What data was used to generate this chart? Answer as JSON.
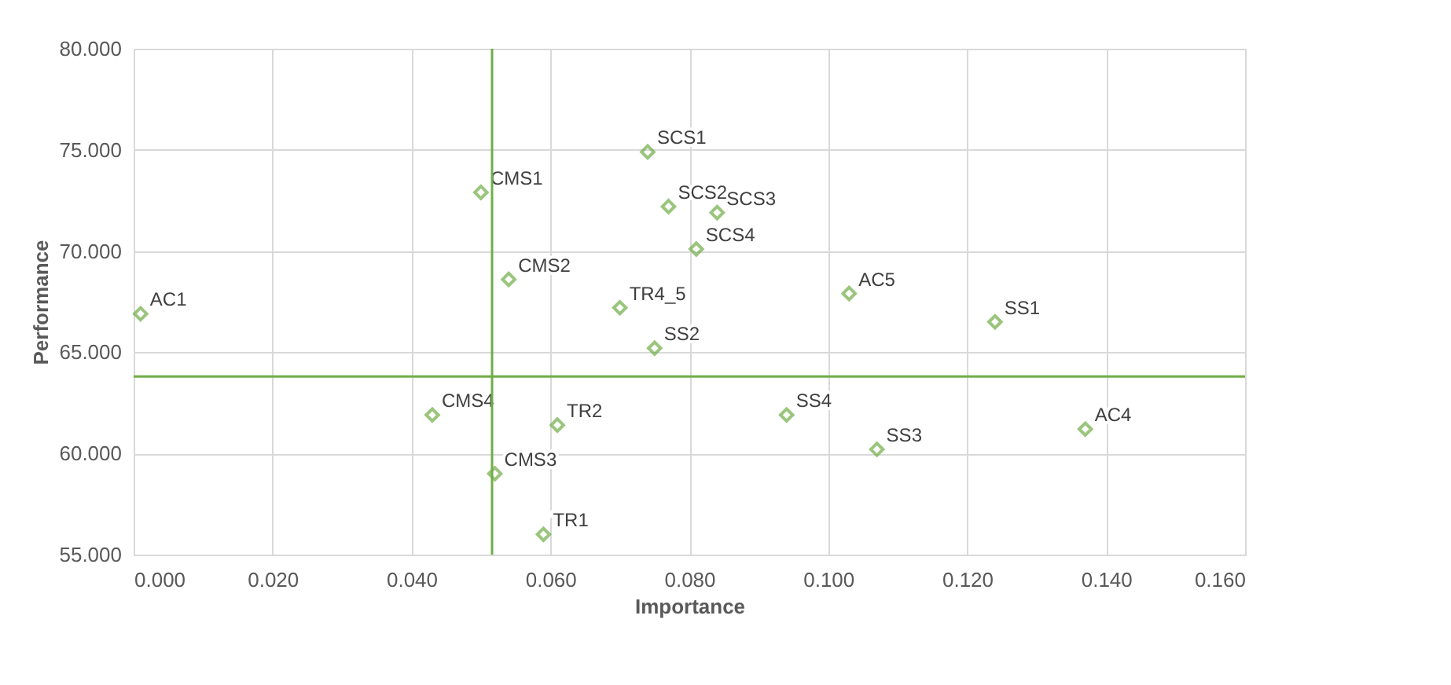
{
  "chart_data": {
    "type": "scatter",
    "xlabel": "Importance",
    "ylabel": "Performance",
    "x": [
      0.001,
      0.05,
      0.054,
      0.074,
      0.077,
      0.084,
      0.081,
      0.07,
      0.103,
      0.124,
      0.075,
      0.061,
      0.043,
      0.052,
      0.059,
      0.094,
      0.107,
      0.137
    ],
    "series": [
      {
        "color": "#70ad47",
        "values": [
          66.9,
          72.9,
          68.6,
          74.9,
          72.2,
          71.9,
          70.1,
          67.2,
          67.9,
          66.5,
          65.2,
          61.4,
          61.9,
          59.0,
          56.0,
          61.9,
          60.2,
          61.2
        ],
        "value_labels": [
          "AC1",
          "CMS1",
          "CMS2",
          "SCS1",
          "SCS2",
          "SCS3",
          "SCS4",
          "TR4_5",
          "AC5",
          "SS1",
          "SS2",
          "TR2",
          "CMS4",
          "CMS3",
          "TR1",
          "SS4",
          "SS3",
          "AC4"
        ]
      }
    ],
    "xlim": [
      0,
      0.16
    ],
    "xticks": [
      {
        "value": 0,
        "label": "0.000"
      },
      {
        "value": 0.02,
        "label": "0.020"
      },
      {
        "value": 0.04,
        "label": "0.040"
      },
      {
        "value": 0.06,
        "label": "0.060"
      },
      {
        "value": 0.08,
        "label": "0.080"
      },
      {
        "value": 0.1,
        "label": "0.100"
      },
      {
        "value": 0.12,
        "label": "0.120"
      },
      {
        "value": 0.14,
        "label": "0.140"
      },
      {
        "value": 0.16,
        "label": "0.160"
      }
    ],
    "ylim": [
      55,
      80
    ],
    "yticks": [
      {
        "value": 55,
        "label": "55.000"
      },
      {
        "value": 60,
        "label": "60.000"
      },
      {
        "value": 65,
        "label": "65.000"
      },
      {
        "value": 70,
        "label": "70.000"
      },
      {
        "value": 75,
        "label": "75.000"
      },
      {
        "value": 80,
        "label": "80.000"
      }
    ],
    "ref_lines": [
      {
        "axis": "x",
        "value": 0.0516,
        "label": null,
        "color": "#70ad47"
      },
      {
        "axis": "y",
        "value": 63.8,
        "label": null,
        "color": "#70ad47"
      }
    ],
    "grid": true,
    "marker": "diamond"
  }
}
